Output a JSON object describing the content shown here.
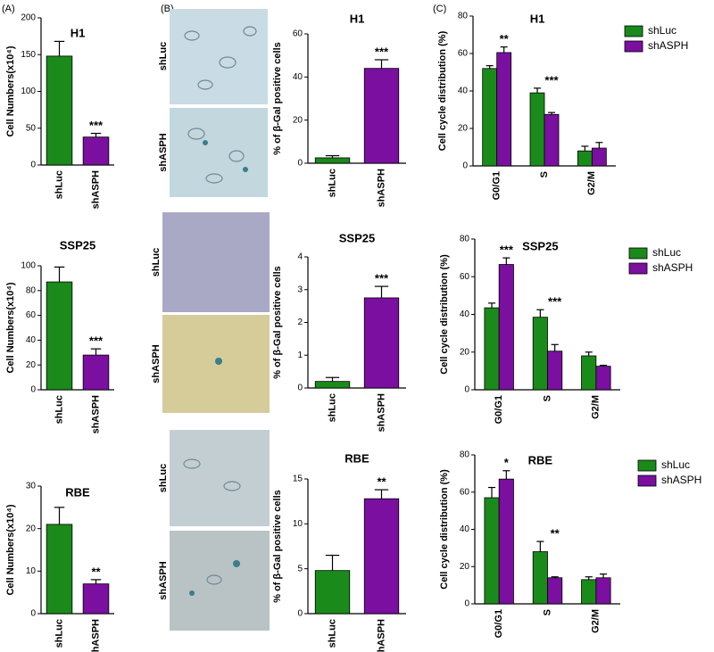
{
  "panel_labels": [
    "(A)",
    "(B)",
    "(C)"
  ],
  "micrographs": [
    {
      "label": "shLuc"
    },
    {
      "label": "shASPH"
    },
    {
      "label": "shLuc"
    },
    {
      "label": "shASPH"
    },
    {
      "label": "shLuc"
    },
    {
      "label": "shASPH"
    }
  ],
  "chart_data": [
    {
      "type": "bar",
      "title": "H1",
      "y_label": "Cell Numbers(x10⁴)",
      "categories": [
        "shLuc",
        "shASPH"
      ],
      "values": [
        148,
        38
      ],
      "errors": [
        20,
        5
      ],
      "colors": [
        "#1a8a1a",
        "#7a0fa0"
      ],
      "annotations": [
        null,
        "***"
      ],
      "ylim": [
        0,
        200
      ],
      "yticks": [
        0,
        50,
        100,
        150,
        200
      ]
    },
    {
      "type": "bar",
      "title": "SSP25",
      "y_label": "Cell Numbers(x10⁴)",
      "categories": [
        "shLuc",
        "shASPH"
      ],
      "values": [
        87,
        28
      ],
      "errors": [
        12,
        5
      ],
      "colors": [
        "#1a8a1a",
        "#7a0fa0"
      ],
      "annotations": [
        null,
        "***"
      ],
      "ylim": [
        0,
        100
      ],
      "yticks": [
        0,
        20,
        40,
        60,
        80,
        100
      ]
    },
    {
      "type": "bar",
      "title": "RBE",
      "y_label": "Cell Numbers(x10⁴)",
      "categories": [
        "shLuc",
        "shASPH"
      ],
      "values": [
        21,
        7
      ],
      "errors": [
        4,
        1
      ],
      "colors": [
        "#1a8a1a",
        "#7a0fa0"
      ],
      "annotations": [
        null,
        "**"
      ],
      "ylim": [
        0,
        30
      ],
      "yticks": [
        0,
        10,
        20,
        30
      ]
    },
    {
      "type": "bar",
      "title": "H1",
      "y_label": "% of β-Gal positive cells",
      "categories": [
        "shLuc",
        "shASPH"
      ],
      "values": [
        2.5,
        44
      ],
      "errors": [
        1,
        4
      ],
      "colors": [
        "#1a8a1a",
        "#7a0fa0"
      ],
      "annotations": [
        null,
        "***"
      ],
      "ylim": [
        0,
        60
      ],
      "yticks": [
        0,
        20,
        40,
        60
      ]
    },
    {
      "type": "bar",
      "title": "SSP25",
      "y_label": "% of β-Gal positive cells",
      "categories": [
        "shLuc",
        "shASPH"
      ],
      "values": [
        0.2,
        2.75
      ],
      "errors": [
        0.12,
        0.35
      ],
      "colors": [
        "#1a8a1a",
        "#7a0fa0"
      ],
      "annotations": [
        null,
        "***"
      ],
      "ylim": [
        0,
        4
      ],
      "yticks": [
        0,
        1,
        2,
        3,
        4
      ]
    },
    {
      "type": "bar",
      "title": "RBE",
      "y_label": "% of β-Gal positive cells",
      "categories": [
        "shLuc",
        "shASPH"
      ],
      "values": [
        4.8,
        12.8
      ],
      "errors": [
        1.7,
        1.0
      ],
      "colors": [
        "#1a8a1a",
        "#7a0fa0"
      ],
      "annotations": [
        null,
        "**"
      ],
      "ylim": [
        0,
        15
      ],
      "yticks": [
        0,
        5,
        10,
        15
      ]
    },
    {
      "type": "grouped-bar",
      "title": "H1",
      "y_label": "Cell cycle distribution (%)",
      "categories": [
        "G0/G1",
        "S",
        "G2/M"
      ],
      "legend": "upper right",
      "series": [
        {
          "name": "shLuc",
          "color": "#1a8a1a",
          "values": [
            52,
            39,
            8
          ],
          "errors": [
            1.5,
            2.5,
            2.5
          ]
        },
        {
          "name": "shASPH",
          "color": "#7a0fa0",
          "values": [
            60.5,
            27.5,
            9.5
          ],
          "errors": [
            3,
            1,
            3
          ]
        }
      ],
      "annotations": [
        "**",
        "***",
        null
      ],
      "ylim": [
        0,
        80
      ],
      "yticks": [
        0,
        20,
        40,
        60,
        80
      ]
    },
    {
      "type": "grouped-bar",
      "title": "SSP25",
      "y_label": "Cell cycle distribution (%)",
      "categories": [
        "G0/G1",
        "S",
        "G2/M"
      ],
      "legend": "upper right",
      "series": [
        {
          "name": "shLuc",
          "color": "#1a8a1a",
          "values": [
            43.5,
            38.5,
            18
          ],
          "errors": [
            2.5,
            4,
            2
          ]
        },
        {
          "name": "shASPH",
          "color": "#7a0fa0",
          "values": [
            66.5,
            20.5,
            12.5
          ],
          "errors": [
            3.5,
            3.5,
            0.5
          ]
        }
      ],
      "annotations": [
        "***",
        "***",
        null
      ],
      "ylim": [
        0,
        80
      ],
      "yticks": [
        0,
        20,
        40,
        60,
        80
      ]
    },
    {
      "type": "grouped-bar",
      "title": "RBE",
      "y_label": "Cell cycle distribution (%)",
      "categories": [
        "G0/G1",
        "S",
        "G2/M"
      ],
      "legend": "upper right",
      "series": [
        {
          "name": "shLuc",
          "color": "#1a8a1a",
          "values": [
            57,
            28,
            13
          ],
          "errors": [
            5.5,
            5.5,
            1.5
          ]
        },
        {
          "name": "shASPH",
          "color": "#7a0fa0",
          "values": [
            67,
            14,
            14
          ],
          "errors": [
            4.5,
            0.5,
            2
          ]
        }
      ],
      "annotations": [
        "*",
        "**",
        null
      ],
      "ylim": [
        0,
        80
      ],
      "yticks": [
        0,
        20,
        40,
        60,
        80
      ]
    }
  ]
}
